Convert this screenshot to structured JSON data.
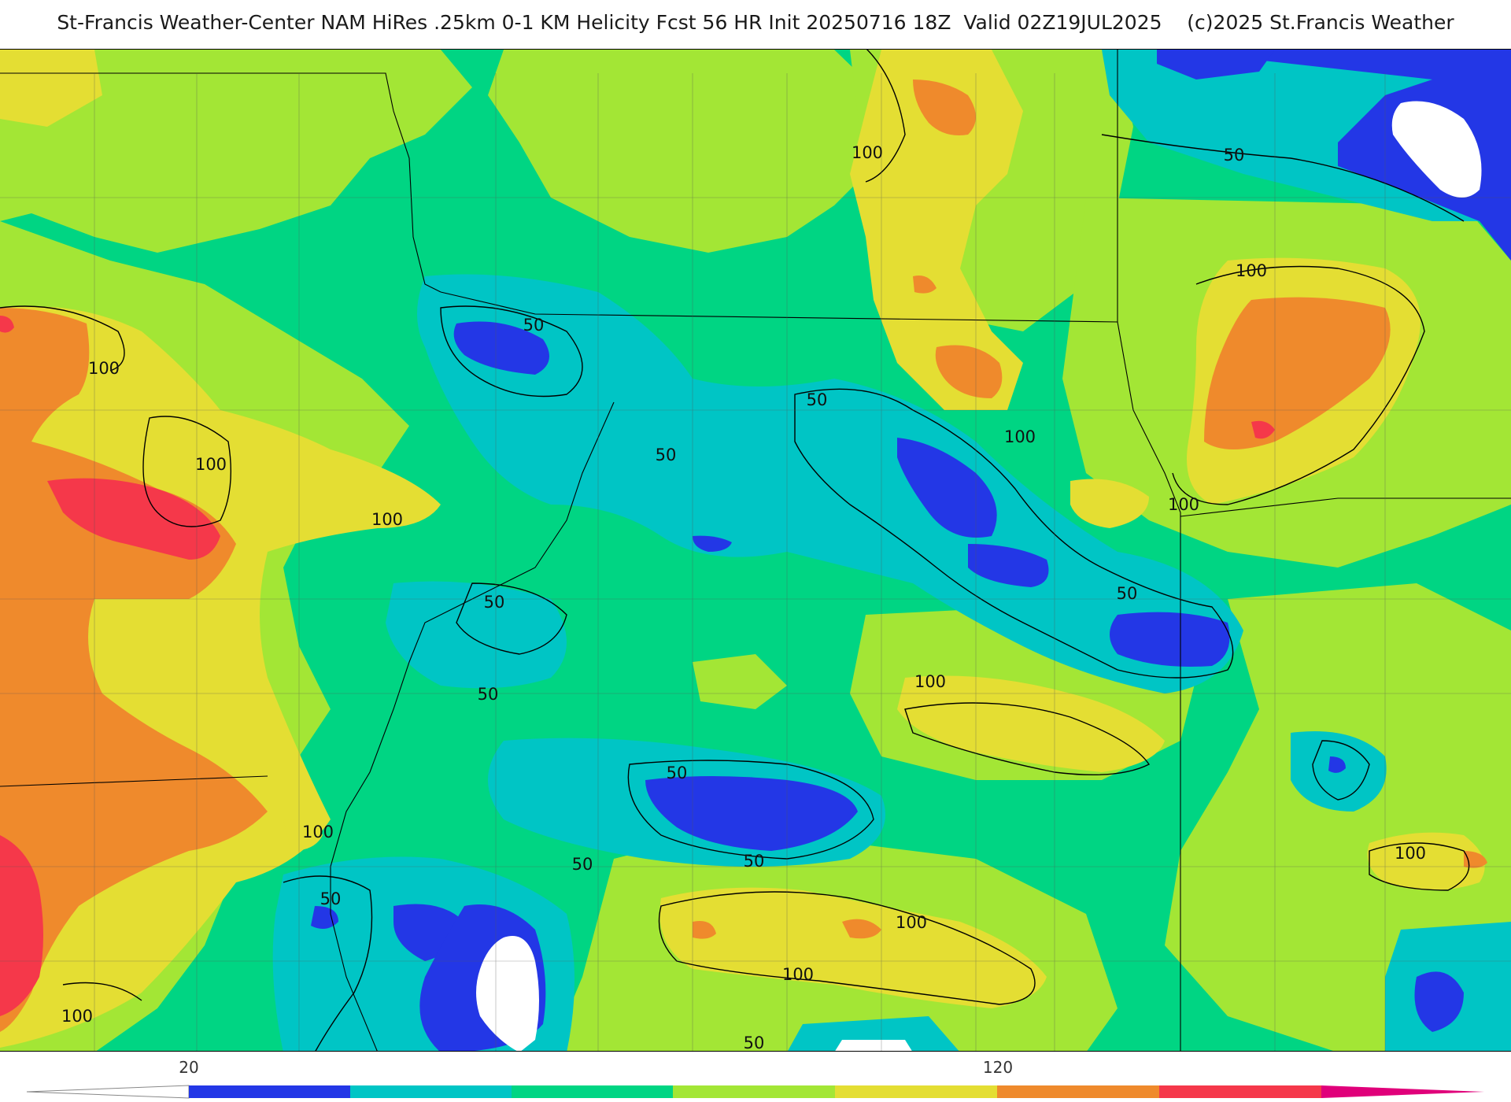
{
  "title": "St-Francis Weather-Center NAM HiRes .25km 0-1 KM Helicity Fcst 56 HR Init 20250716 18Z  Valid 02Z19JUL2025    (c)2025 St.Francis Weather",
  "map": {
    "field": "0-1 KM Helicity",
    "contour_labels": [
      {
        "id": "c1",
        "text": "100"
      },
      {
        "id": "c2",
        "text": "50"
      },
      {
        "id": "c3",
        "text": "100"
      },
      {
        "id": "c4",
        "text": "100"
      },
      {
        "id": "c5",
        "text": "50"
      },
      {
        "id": "c6",
        "text": "100"
      },
      {
        "id": "c7",
        "text": "100"
      },
      {
        "id": "c8",
        "text": "100"
      },
      {
        "id": "c9",
        "text": "50"
      },
      {
        "id": "c10",
        "text": "50"
      },
      {
        "id": "c11",
        "text": "100"
      },
      {
        "id": "c12",
        "text": "50"
      },
      {
        "id": "c13",
        "text": "100"
      },
      {
        "id": "c14",
        "text": "50"
      },
      {
        "id": "c15",
        "text": "50"
      },
      {
        "id": "c16",
        "text": "50"
      },
      {
        "id": "c17",
        "text": "50"
      },
      {
        "id": "c18",
        "text": "100"
      },
      {
        "id": "c19",
        "text": "100"
      },
      {
        "id": "c20",
        "text": "100"
      },
      {
        "id": "c21",
        "text": "50"
      },
      {
        "id": "c22",
        "text": "100"
      },
      {
        "id": "c23",
        "text": "100"
      },
      {
        "id": "c24",
        "text": "50"
      },
      {
        "id": "c25",
        "text": "100"
      },
      {
        "id": "c26",
        "text": "50"
      }
    ]
  },
  "colorbar": {
    "tick_labels": [
      "20",
      "120"
    ],
    "colors": {
      "below": "#ffffff",
      "blue": "#2337e6",
      "cyan": "#00c5c5",
      "green": "#00d583",
      "lime": "#a3e635",
      "yellow": "#e4de33",
      "orange": "#ef8a2c",
      "red": "#f5384a",
      "magenta": "#e0007a"
    }
  }
}
